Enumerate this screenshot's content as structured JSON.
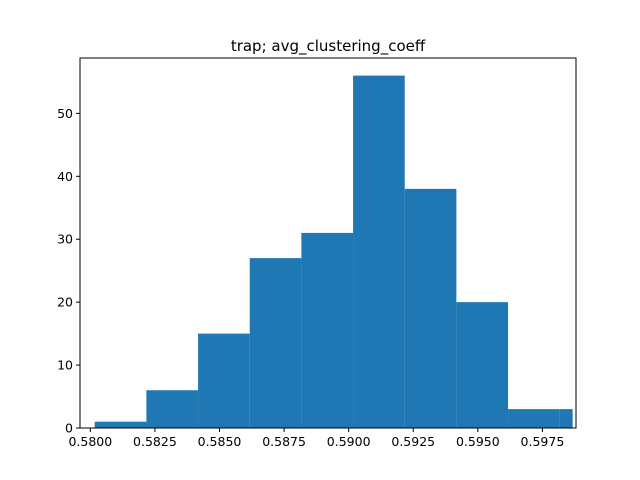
{
  "chart_data": {
    "type": "bar",
    "title": "trap; avg_clustering_coeff",
    "xlabel": "",
    "ylabel": "",
    "bin_edges": [
      0.58017,
      0.58217,
      0.58417,
      0.58617,
      0.58817,
      0.59017,
      0.59217,
      0.59417,
      0.59617,
      0.59817,
      0.59867
    ],
    "values": [
      1,
      6,
      15,
      27,
      31,
      56,
      38,
      20,
      3,
      3
    ],
    "xlim": [
      0.5796,
      0.5988
    ],
    "ylim": [
      0,
      58.8
    ],
    "xticks": [
      0.58,
      0.5825,
      0.585,
      0.5875,
      0.59,
      0.5925,
      0.595,
      0.5975
    ],
    "xtick_labels": [
      "0.5800",
      "0.5825",
      "0.5850",
      "0.5875",
      "0.5900",
      "0.5925",
      "0.5950",
      "0.5975"
    ],
    "yticks": [
      0,
      10,
      20,
      30,
      40,
      50
    ],
    "ytick_labels": [
      "0",
      "10",
      "20",
      "30",
      "40",
      "50"
    ],
    "bar_color": "#1f77b4",
    "grid": false,
    "legend": "none"
  }
}
